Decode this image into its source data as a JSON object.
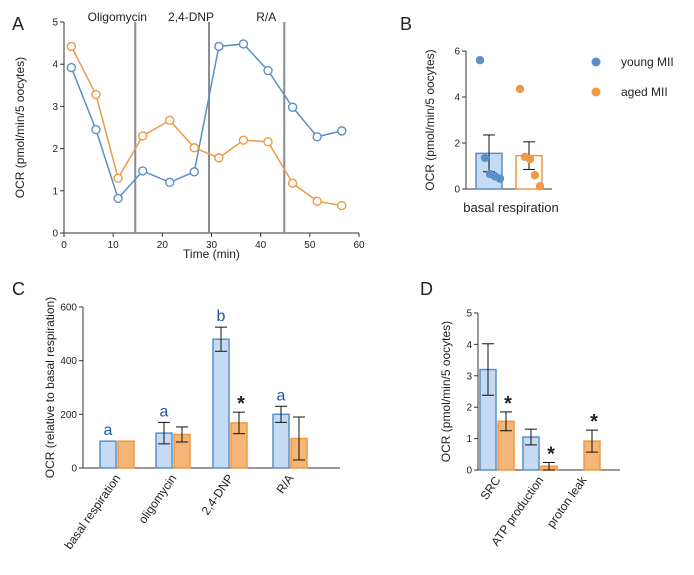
{
  "colors": {
    "young": "#5b8fc9",
    "young_fill": "#c5dbf3",
    "aged": "#ee9944",
    "aged_fill": "#f5b577",
    "vline": "#8a8a8a",
    "letter": "#1f55a8"
  },
  "chart_data": [
    {
      "panel": "A",
      "type": "line",
      "xlabel": "Time (min)",
      "ylabel": "OCR (pmol/min/5 oocytes)",
      "xlim": [
        0,
        60
      ],
      "ylim": [
        0,
        5
      ],
      "xticks": [
        "0",
        "10",
        "20",
        "30",
        "40",
        "50",
        "60"
      ],
      "yticks": [
        "0",
        "1",
        "2",
        "3",
        "4",
        "5"
      ],
      "injections": [
        {
          "label": "Oligomycin",
          "x": 14.5
        },
        {
          "label": "2,4-DNP",
          "x": 29.5
        },
        {
          "label": "R/A",
          "x": 44.8
        }
      ],
      "series": [
        {
          "name": "young MII",
          "x": [
            1.5,
            6.5,
            11,
            16,
            21.5,
            26.5,
            31.5,
            36.5,
            41.5,
            46.5,
            51.5,
            56.5
          ],
          "y": [
            3.92,
            2.45,
            0.82,
            1.47,
            1.2,
            1.45,
            4.42,
            4.48,
            3.85,
            2.98,
            2.28,
            2.42
          ]
        },
        {
          "name": "aged MII",
          "x": [
            1.5,
            6.5,
            11,
            16,
            21.5,
            26.5,
            31.5,
            36.5,
            41.5,
            46.5,
            51.5,
            56.5
          ],
          "y": [
            4.42,
            3.28,
            1.3,
            2.3,
            2.67,
            2.02,
            1.78,
            2.2,
            2.16,
            1.18,
            0.75,
            0.65
          ]
        }
      ]
    },
    {
      "panel": "B",
      "type": "bar",
      "categories": [
        "basal respiration"
      ],
      "ylabel": "OCR (pmol/min/5 oocytes)",
      "ylim": [
        0,
        6
      ],
      "yticks": [
        "0",
        "2",
        "4",
        "6"
      ],
      "series": [
        {
          "name": "young MII",
          "values": [
            1.55
          ],
          "error": [
            0.8
          ],
          "points": [
            5.6,
            1.35,
            0.65,
            0.55,
            0.45
          ]
        },
        {
          "name": "aged MII",
          "values": [
            1.45
          ],
          "error": [
            0.6
          ],
          "points": [
            4.35,
            1.4,
            1.3,
            0.6,
            0.12
          ]
        }
      ],
      "legend": [
        "young MII",
        "aged MII"
      ]
    },
    {
      "panel": "C",
      "type": "bar",
      "categories": [
        "basal respiration",
        "oligomycin",
        "2,4-DNP",
        "R/A"
      ],
      "ylabel": "OCR (relative to basal respiration)",
      "ylim": [
        0,
        600
      ],
      "yticks": [
        "0",
        "200",
        "400",
        "600"
      ],
      "series": [
        {
          "name": "young MII",
          "values": [
            100,
            130,
            480,
            200
          ],
          "error": [
            0,
            40,
            45,
            30
          ]
        },
        {
          "name": "aged MII",
          "values": [
            100,
            125,
            168,
            110
          ],
          "error": [
            0,
            28,
            40,
            80
          ]
        }
      ],
      "annotations": [
        {
          "text": "a",
          "category": 0,
          "series": 0
        },
        {
          "text": "a",
          "category": 1,
          "series": 0
        },
        {
          "text": "b",
          "category": 2,
          "series": 0
        },
        {
          "text": "a",
          "category": 3,
          "series": 0
        },
        {
          "text": "*",
          "category": 2,
          "series": 1
        }
      ]
    },
    {
      "panel": "D",
      "type": "bar",
      "categories": [
        "SRC",
        "ATP production",
        "proton leak"
      ],
      "ylabel": "OCR (pmol/min/5 oocytes)",
      "ylim": [
        0,
        5
      ],
      "yticks": [
        "0",
        "1",
        "2",
        "3",
        "4",
        "5"
      ],
      "series": [
        {
          "name": "young MII",
          "values": [
            3.2,
            1.05,
            0
          ],
          "error": [
            0.82,
            0.25,
            0
          ]
        },
        {
          "name": "aged MII",
          "values": [
            1.55,
            0.12,
            0.92
          ],
          "error": [
            0.3,
            0.12,
            0.35
          ]
        }
      ],
      "annotations": [
        {
          "text": "*",
          "category": 0,
          "series": 1
        },
        {
          "text": "*",
          "category": 1,
          "series": 1
        },
        {
          "text": "*",
          "category": 2,
          "series": 1
        }
      ]
    }
  ]
}
